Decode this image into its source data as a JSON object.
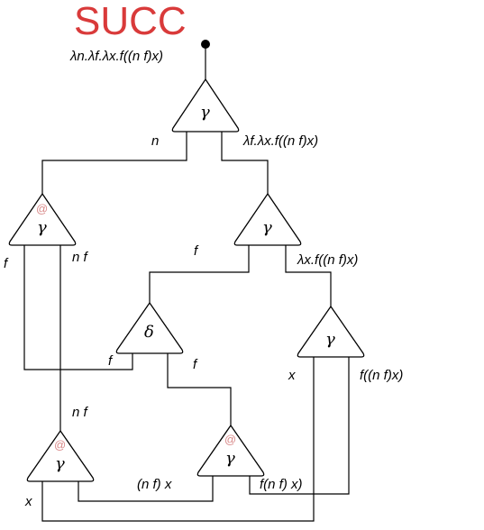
{
  "title": "SUCC",
  "top_label": "λn.λf.λx.f((n f)x)",
  "nodes": [
    {
      "id": "g_top",
      "glyph": "γ",
      "at": ""
    },
    {
      "id": "g_nf",
      "glyph": "γ",
      "at": "@"
    },
    {
      "id": "g_right",
      "glyph": "γ",
      "at": ""
    },
    {
      "id": "d_mid",
      "glyph": "δ",
      "at": ""
    },
    {
      "id": "g_x",
      "glyph": "γ",
      "at": ""
    },
    {
      "id": "g_bl",
      "glyph": "γ",
      "at": "@"
    },
    {
      "id": "g_bm",
      "glyph": "γ",
      "at": "@"
    }
  ],
  "edge_labels": {
    "n": "n",
    "lam_f": "λf.λx.f((n f)x)",
    "f_left": "f",
    "nf_upper": "n f",
    "f_right": "f",
    "lam_x": "λx.f((n f)x)",
    "f_delta_left": "f",
    "f_delta_right": "f",
    "x_right": "x",
    "fnfx": "f((n f)x)",
    "nf_lower": "n f",
    "nfx": "(n f) x",
    "fnf_x": "f(n f) x)",
    "x_bottom": "x"
  }
}
